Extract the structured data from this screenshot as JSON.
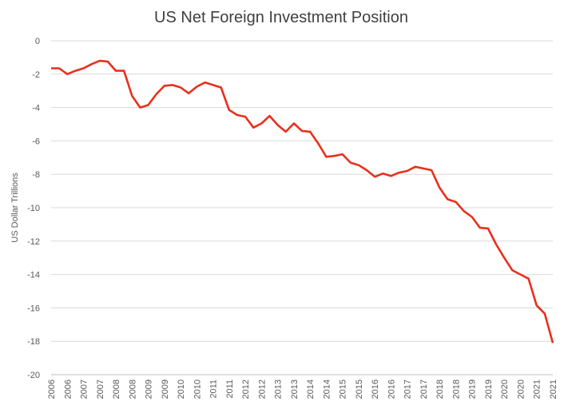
{
  "chart_data": {
    "type": "line",
    "title": "US Net Foreign Investment Position",
    "y_label": "US Dollar Trillions",
    "categories": [
      "2006",
      null,
      "2006",
      null,
      "2007",
      null,
      "2007",
      null,
      "2008",
      null,
      "2008",
      null,
      "2009",
      null,
      "2009",
      null,
      "2010",
      null,
      "2010",
      null,
      "2011",
      null,
      "2011",
      null,
      "2012",
      null,
      "2012",
      null,
      "2013",
      null,
      "2013",
      null,
      "2014",
      null,
      "2014",
      null,
      "2015",
      null,
      "2015",
      null,
      "2016",
      null,
      "2016",
      null,
      "2017",
      null,
      "2017",
      null,
      "2018",
      null,
      "2018",
      null,
      "2019",
      null,
      "2019",
      null,
      "2020",
      null,
      "2020",
      null,
      "2021",
      null,
      "2021"
    ],
    "series": [
      {
        "name": "US Net Foreign Investment Position",
        "color": "#e8301c",
        "values": [
          -1.65,
          -1.65,
          -2.0,
          -1.8,
          -1.65,
          -1.4,
          -1.2,
          -1.25,
          -1.8,
          -1.8,
          -3.3,
          -4.0,
          -3.85,
          -3.2,
          -2.7,
          -2.65,
          -2.8,
          -3.15,
          -2.75,
          -2.5,
          -2.65,
          -2.8,
          -4.15,
          -4.45,
          -4.55,
          -5.2,
          -4.95,
          -4.5,
          -5.05,
          -5.45,
          -4.95,
          -5.4,
          -5.45,
          -6.15,
          -6.95,
          -6.9,
          -6.8,
          -7.3,
          -7.45,
          -7.75,
          -8.15,
          -7.95,
          -8.1,
          -7.9,
          -7.8,
          -7.55,
          -7.65,
          -7.75,
          -8.8,
          -9.5,
          -9.65,
          -10.2,
          -10.55,
          -11.2,
          -11.25,
          -12.2,
          -13.0,
          -13.75,
          -14.0,
          -14.25,
          -15.85,
          -16.35,
          -18.1
        ]
      }
    ],
    "ylim": [
      -20,
      0
    ],
    "yticks": [
      -20,
      -18,
      -16,
      -14,
      -12,
      -10,
      -8,
      -6,
      -4,
      -2,
      0
    ],
    "grid": true
  }
}
